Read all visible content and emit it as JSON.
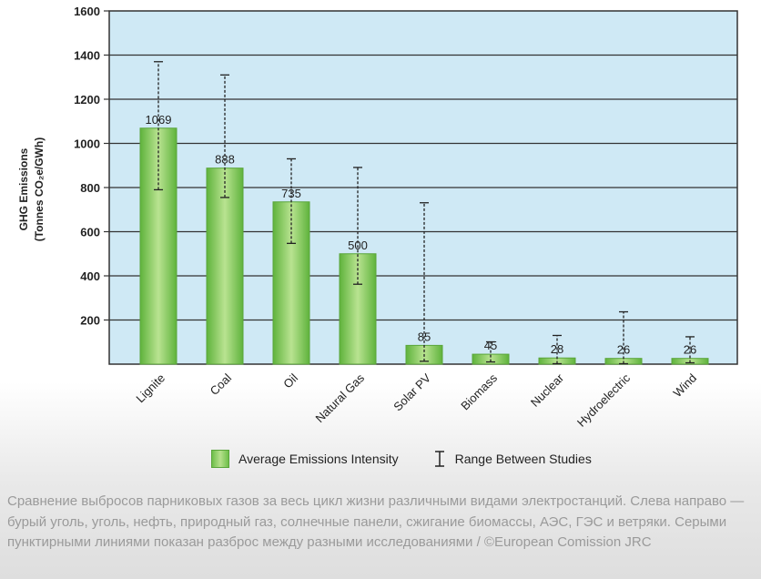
{
  "chart_data": {
    "type": "bar",
    "ylabel_line1": "GHG Emissions",
    "ylabel_line2": "(Tonnes CO₂e/GWh)",
    "ylim": [
      0,
      1600
    ],
    "yticks": [
      200,
      400,
      600,
      800,
      1000,
      1200,
      1400,
      1600
    ],
    "grid": true,
    "categories": [
      "Lignite",
      "Coal",
      "Oil",
      "Natural Gas",
      "Solar PV",
      "Biomass",
      "Nuclear",
      "Hydroelectric",
      "Wind"
    ],
    "series": [
      {
        "name": "Average Emissions Intensity",
        "values": [
          1069,
          888,
          735,
          500,
          85,
          45,
          28,
          26,
          26
        ]
      }
    ],
    "ranges": [
      [
        790,
        1370
      ],
      [
        755,
        1310
      ],
      [
        547,
        930
      ],
      [
        362,
        891
      ],
      [
        13,
        731
      ],
      [
        10,
        101
      ],
      [
        2,
        130
      ],
      [
        2,
        237
      ],
      [
        6,
        124
      ]
    ],
    "range_name": "Range Between Studies",
    "plot_background": "#cfe9f5",
    "bar_color": "#7ec95a"
  },
  "legend": {
    "bar_label": "Average Emissions Intensity",
    "range_label": "Range Between Studies"
  },
  "caption": "Сравнение выбросов парниковых газов за весь цикл жизни различными видами электростанций. Слева направо — бурый уголь, уголь, нефть, природный газ, солнечные панели, сжигание биомассы, АЭС, ГЭС и ветряки. Серыми пунктирными линиями показан разброс между разными исследованиями / ©European Comission JRC"
}
